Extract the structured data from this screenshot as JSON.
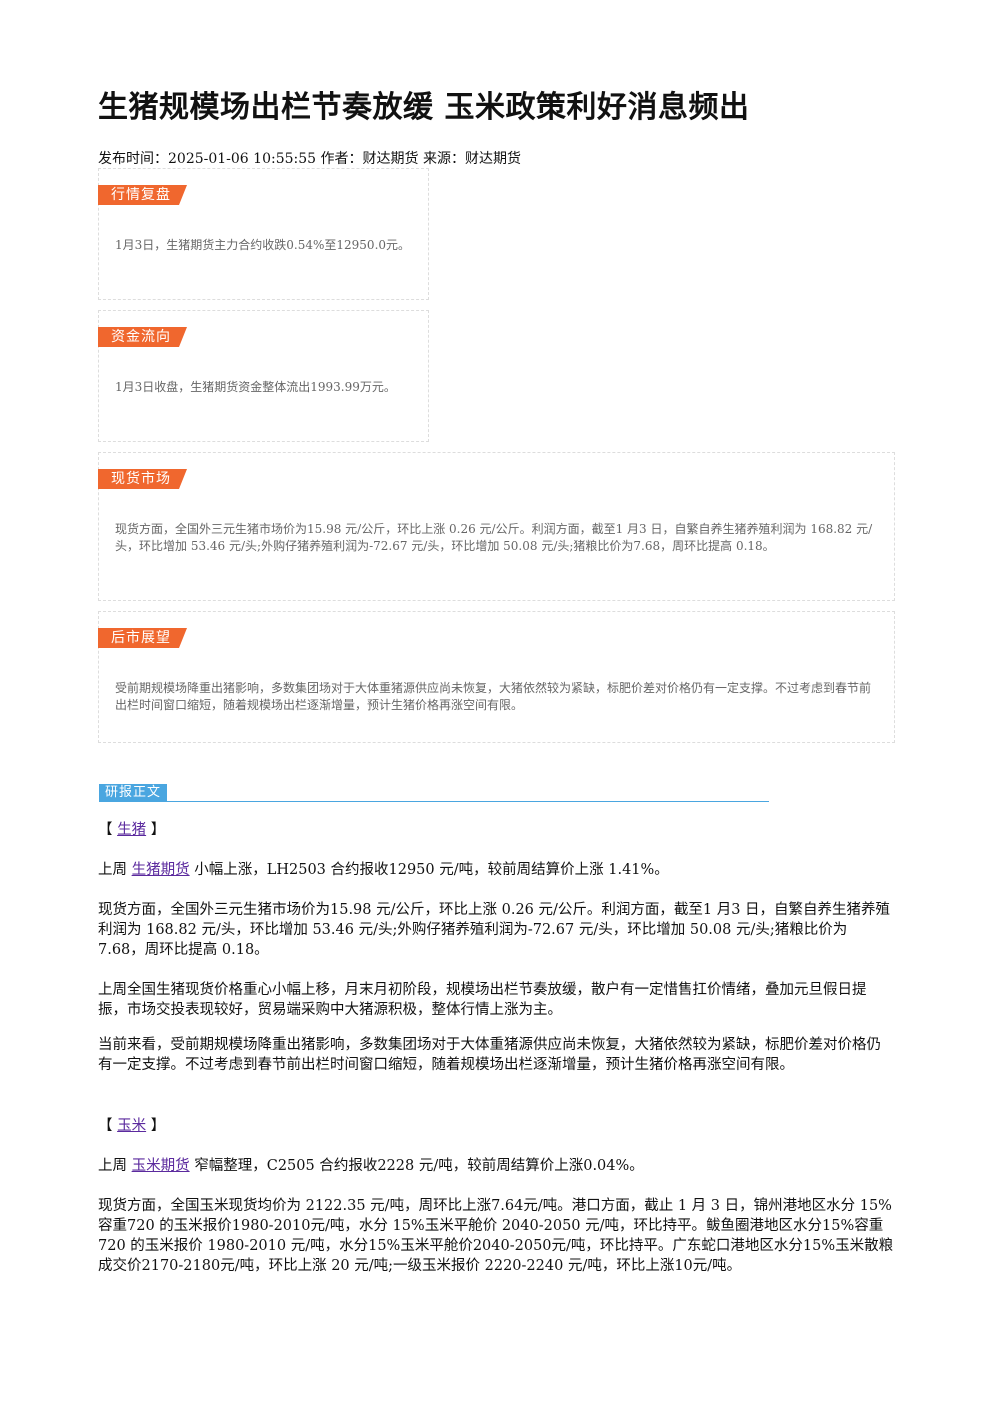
{
  "title": "生猪规模场出栏节奏放缓 玉米政策利好消息频出",
  "meta": {
    "time_label": "发布时间：",
    "time": "2025-01-06 10:55:55",
    "author_label": "作者：",
    "author": "财达期货",
    "source_label": "来源：",
    "source": "财达期货"
  },
  "summary_boxes": [
    {
      "tag": "行情复盘",
      "text": "1月3日，生猪期货主力合约收跌0.54%至12950.0元。"
    },
    {
      "tag": "资金流向",
      "text": "1月3日收盘，生猪期货资金整体流出1993.99万元。"
    },
    {
      "tag": "现货市场",
      "text": "现货方面，全国外三元生猪市场价为15.98 元/公斤，环比上涨 0.26 元/公斤。利润方面，截至1 月3 日，自繁自养生猪养殖利润为 168.82 元/头，环比增加 53.46 元/头;外购仔猪养殖利润为-72.67 元/头，环比增加 50.08 元/头;猪粮比价为7.68，周环比提高 0.18。"
    },
    {
      "tag": "后市展望",
      "text": "受前期规模场降重出猪影响，多数集团场对于大体重猪源供应尚未恢复，大猪依然较为紧缺，标肥价差对价格仍有一定支撑。不过考虑到春节前出栏时间窗口缩短，随着规模场出栏逐渐增量，预计生猪价格再涨空间有限。"
    }
  ],
  "report_tag": "研报正文",
  "hog": {
    "bracket_open": "【 ",
    "section": "生猪",
    "bracket_close": " 】",
    "p1_prefix": "上周 ",
    "p1_link": "生猪期货",
    "p1_suffix": " 小幅上涨，LH2503 合约报收12950 元/吨，较前周结算价上涨 1.41%。",
    "p2": "现货方面，全国外三元生猪市场价为15.98 元/公斤，环比上涨 0.26 元/公斤。利润方面，截至1 月3 日，自繁自养生猪养殖利润为 168.82 元/头，环比增加 53.46 元/头;外购仔猪养殖利润为-72.67 元/头，环比增加 50.08 元/头;猪粮比价为7.68，周环比提高 0.18。",
    "p3": "上周全国生猪现货价格重心小幅上移，月末月初阶段，规模场出栏节奏放缓，散户有一定惜售扛价情绪，叠加元旦假日提振，市场交投表现较好，贸易端采购中大猪源积极，整体行情上涨为主。",
    "p4": "当前来看，受前期规模场降重出猪影响，多数集团场对于大体重猪源供应尚未恢复，大猪依然较为紧缺，标肥价差对价格仍有一定支撑。不过考虑到春节前出栏时间窗口缩短，随着规模场出栏逐渐增量，预计生猪价格再涨空间有限。"
  },
  "corn": {
    "bracket_open": "【 ",
    "section": "玉米",
    "bracket_close": " 】",
    "p1_prefix": "上周 ",
    "p1_link": "玉米期货",
    "p1_suffix": " 窄幅整理，C2505 合约报收2228 元/吨，较前周结算价上涨0.04%。",
    "p2": "现货方面，全国玉米现货均价为 2122.35 元/吨，周环比上涨7.64元/吨。港口方面，截止 1 月 3 日，锦州港地区水分 15%容重720 的玉米报价1980-2010元/吨，水分 15%玉米平舱价 2040-2050 元/吨，环比持平。鲅鱼圈港地区水分15%容重 720 的玉米报价 1980-2010 元/吨，水分15%玉米平舱价2040-2050元/吨，环比持平。广东蛇口港地区水分15%玉米散粮成交价2170-2180元/吨，环比上涨 20 元/吨;一级玉米报价 2220-2240 元/吨，环比上涨10元/吨。"
  }
}
